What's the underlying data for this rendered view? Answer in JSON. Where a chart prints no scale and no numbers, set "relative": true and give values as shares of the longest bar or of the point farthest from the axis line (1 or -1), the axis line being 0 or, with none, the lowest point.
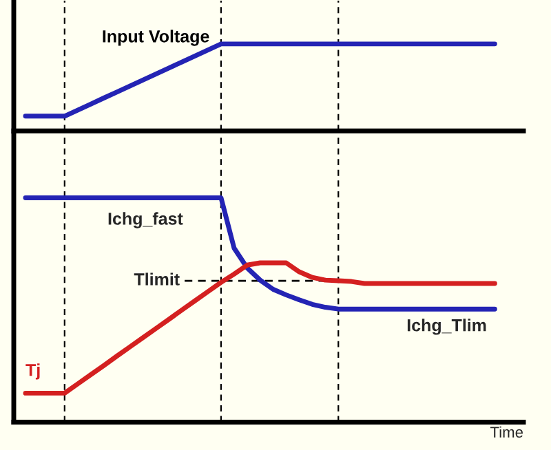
{
  "chart_data": [
    {
      "type": "line",
      "relative": true,
      "categories": [
        null,
        null,
        null,
        null,
        null,
        null,
        null,
        null,
        null,
        null,
        null,
        null,
        null,
        null,
        null,
        null,
        null,
        null,
        null,
        null,
        null,
        null,
        null,
        null,
        null,
        null,
        null,
        null,
        null,
        null,
        null,
        null,
        null,
        null,
        null,
        null,
        null
      ],
      "series": [
        {
          "name": "Input Voltage",
          "color": "#2424b4",
          "values": [
            0.17,
            0.17,
            0.17,
            0.17,
            0.239,
            0.308,
            0.378,
            0.447,
            0.516,
            0.585,
            0.654,
            0.723,
            0.793,
            0.862,
            0.931,
            1.0,
            1.0,
            1.0,
            1.0,
            1.0,
            1.0,
            1.0,
            1.0,
            1.0,
            1.0,
            1.0,
            1.0,
            1.0,
            1.0,
            1.0,
            1.0,
            1.0,
            1.0,
            1.0,
            1.0,
            1.0,
            1.0
          ]
        }
      ],
      "grid": "x"
    },
    {
      "type": "line",
      "relative": true,
      "grid": "x",
      "xlabel": "Time",
      "categories": [
        null,
        null,
        null,
        null,
        null,
        null,
        null,
        null,
        null,
        null,
        null,
        null,
        null,
        null,
        null,
        null,
        null,
        null,
        null,
        null,
        null,
        null,
        null,
        null,
        null,
        null,
        null,
        null,
        null,
        null,
        null,
        null,
        null,
        null,
        null,
        null,
        null
      ],
      "series": [
        {
          "color": "#2424b4",
          "values": [
            1.0,
            1.0,
            1.0,
            1.0,
            1.0,
            1.0,
            1.0,
            1.0,
            1.0,
            1.0,
            1.0,
            1.0,
            1.0,
            1.0,
            1.0,
            1.0,
            0.776,
            0.688,
            0.633,
            0.592,
            0.567,
            0.545,
            0.525,
            0.512,
            0.504,
            0.504,
            0.504,
            0.504,
            0.504,
            0.504,
            0.504,
            0.504,
            0.504,
            0.504,
            0.504,
            0.504,
            0.504
          ]
        },
        {
          "name": "Tj",
          "color": "#d42020",
          "values": [
            0.129,
            0.129,
            0.129,
            0.129,
            0.17,
            0.211,
            0.252,
            0.294,
            0.335,
            0.376,
            0.417,
            0.458,
            0.5,
            0.541,
            0.582,
            0.623,
            0.66,
            0.7,
            0.71,
            0.71,
            0.71,
            0.67,
            0.645,
            0.633,
            0.63,
            0.627,
            0.618,
            0.618,
            0.618,
            0.618,
            0.618,
            0.618,
            0.618,
            0.618,
            0.618,
            0.618,
            0.618
          ]
        }
      ],
      "annotations": [
        "Ichg_fast",
        "Ichg_Tlim"
      ],
      "ref_lines": [
        {
          "axis": "y",
          "value": 0.63,
          "label": "Tlimit",
          "line_style": "dashed",
          "color": "#000000"
        }
      ]
    }
  ]
}
